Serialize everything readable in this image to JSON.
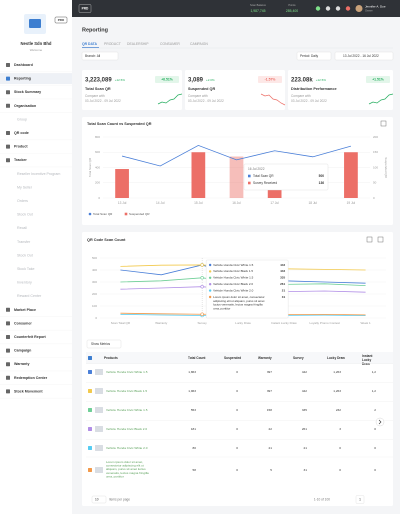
{
  "sidebar": {
    "company": "Nestle Sdn Bhd",
    "badge": "PRO",
    "subtitle": "Welcome",
    "menu": [
      {
        "label": "Dashboard"
      },
      {
        "label": "Reporting",
        "active": true
      },
      {
        "label": "Stock Summary"
      },
      {
        "label": "Organisation"
      },
      {
        "label": "Group",
        "sub": true
      },
      {
        "label": "QR code"
      },
      {
        "label": "Product"
      },
      {
        "label": "Tracker"
      },
      {
        "label": "Reseller Incentive Program",
        "sub": true
      },
      {
        "label": "My Seller",
        "sub": true
      },
      {
        "label": "Orders",
        "sub": true
      },
      {
        "label": "Stock Out",
        "sub": true
      },
      {
        "label": "Recall",
        "sub": true
      },
      {
        "label": "Transfer",
        "sub": true
      },
      {
        "label": "Stock Out",
        "sub": true
      },
      {
        "label": "Stock Take",
        "sub": true
      },
      {
        "label": "Inventory",
        "sub": true
      },
      {
        "label": "Reward Center",
        "sub": true
      },
      {
        "label": "Market Place"
      },
      {
        "label": "Consumer"
      },
      {
        "label": "Counterfeit Report"
      },
      {
        "label": "Campaign"
      },
      {
        "label": "Warranty"
      },
      {
        "label": "Redemption Center"
      },
      {
        "label": "Stock Movement"
      }
    ]
  },
  "topbar": {
    "env": "PRD",
    "balances": [
      {
        "label": "Scan Balance",
        "value": "1,987,745"
      },
      {
        "label": "Points",
        "value": "285,400"
      }
    ],
    "user": "Jennifer A. Doe",
    "role": "Owner"
  },
  "header": {
    "title": "Reporting",
    "tabs": [
      "QR DATA",
      "PRODUCT",
      "DEALERSHIP",
      "CONSUMER",
      "CAMPAIGN"
    ],
    "branch": "Branch: All",
    "period": "Period: Daily",
    "date_range": "13 Jul 2022 - 16 Jul 2022"
  },
  "cards": [
    {
      "value": "3,223,089",
      "change": "+12.5%",
      "title": "Total Scan QR",
      "compare": "Compare with",
      "compare_range": "03 Jul 2022 - 09 Jul 2022",
      "badge": "+6.51%",
      "trend": "up"
    },
    {
      "value": "3,089",
      "change": "+2.0%",
      "title": "Suspended QR",
      "compare": "Compare with",
      "compare_range": "03 Jul 2022 - 09 Jul 2022",
      "badge": "-1.57%",
      "trend": "down"
    },
    {
      "value": "223.08k",
      "change": "+12.5%",
      "title": "Distribution Performance",
      "compare": "Compare with",
      "compare_range": "03 Jul 2022 - 09 Jul 2022",
      "badge": "+1.51%",
      "trend": "up"
    }
  ],
  "chart_data": [
    {
      "type": "combo",
      "title": "Total Scan Count vs Suspended QR",
      "categories": [
        "13 Jul",
        "14 Jul",
        "15 Jul",
        "16 Jul",
        "17 Jul",
        "18 Jul",
        "19 Jul"
      ],
      "series": [
        {
          "name": "Total Scan QR",
          "type": "line",
          "color": "#4a7fd8",
          "values": [
            550,
            420,
            690,
            500,
            620,
            540,
            680
          ]
        },
        {
          "name": "Suspended QR",
          "type": "bar",
          "color": "#ec6f67",
          "axis": "y2",
          "values": [
            95,
            0,
            150,
            136,
            40,
            0,
            150
          ]
        }
      ],
      "ylabel": "Total Scan QR",
      "y2label": "Suspended QR",
      "ylim": [
        0,
        800
      ],
      "yticks": [
        0,
        200,
        400,
        600,
        800
      ],
      "y2lim": [
        0,
        200
      ],
      "y2ticks": [
        0,
        50,
        100,
        150,
        200
      ],
      "grid": true,
      "tooltip": {
        "title": "16 Jul 2022",
        "labels": [
          "Total Scan QR",
          "Survey Received"
        ]
      }
    },
    {
      "type": "line",
      "title": "QR Code Scan Count",
      "categories": [
        "Scan Total QR",
        "Warranty",
        "Survey",
        "Lucky Draw",
        "Instant Lucky Draw",
        "Loyalty Promo Contest",
        "Week 1"
      ],
      "series": [
        {
          "name": "Vehicle Honda Civic White 1.5",
          "color": "#4a7fd8",
          "values": [
            400,
            360,
            442,
            330,
            310,
            300,
            290
          ]
        },
        {
          "name": "Vehicle Honda Civic Black 1.5",
          "color": "#f2c94c",
          "values": [
            430,
            440,
            442,
            420,
            410,
            405,
            400
          ]
        },
        {
          "name": "Vehicle Honda Civic White 1.5",
          "color": "#6fcf97",
          "values": [
            300,
            310,
            335,
            290,
            280,
            285,
            270
          ]
        },
        {
          "name": "Vehicle Honda Civic Black 2.0",
          "color": "#b18ee6",
          "values": [
            240,
            250,
            261,
            230,
            220,
            225,
            215
          ]
        },
        {
          "name": "Vehicle Honda Civic White 2.0",
          "color": "#56ccf2",
          "values": [
            30,
            25,
            21,
            20,
            22,
            24,
            20
          ]
        },
        {
          "name": "Lorem ipsum dolor sit amet, consectetur adipiscing elit ut aliquam, purus sit amet luctus venenatis, lectus magna fringilla urna, porttitor",
          "color": "#f2994a",
          "values": [
            40,
            35,
            31,
            30,
            28,
            30,
            26
          ]
        }
      ],
      "ylim": [
        0,
        500
      ],
      "yticks": [
        0,
        100,
        200,
        300,
        400,
        500
      ],
      "grid": true
    }
  ],
  "table": {
    "show_metrics": "Show Metrics",
    "columns": [
      "Products",
      "Total Count",
      "Suspended",
      "Warranty",
      "Survey",
      "Lucky Draw",
      "Instant Lucky Draw"
    ],
    "rows": [
      [
        "1,863",
        "0",
        "397",
        "442",
        "1,263",
        "1,2"
      ],
      [
        "1,963",
        "0",
        "397",
        "442",
        "1,263",
        "1,2"
      ],
      [
        "553",
        "0",
        "158",
        "335",
        "232",
        "2"
      ],
      [
        "181",
        "0",
        "22",
        "261",
        "3",
        "0"
      ],
      [
        "80",
        "0",
        "21",
        "21",
        "0",
        "0"
      ],
      [
        "58",
        "0",
        "5",
        "31",
        "0",
        "0"
      ]
    ],
    "page_size": "10",
    "per_page": "items per page",
    "range": "1-10 of 100",
    "page": "1"
  }
}
